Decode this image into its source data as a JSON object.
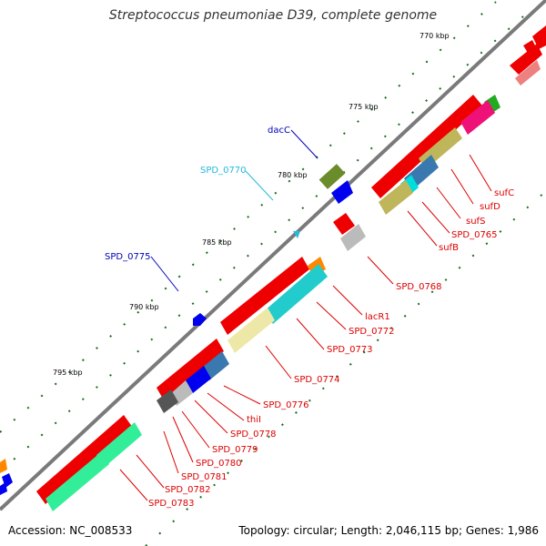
{
  "title": "Streptococcus pneumoniae D39, complete genome",
  "accession": "Accession: NC_008533",
  "topology": "Topology: circular; Length: 2,046,115 bp; Genes: 1,986",
  "colors": {
    "backbone": "#7a7a7a",
    "forward_gene": "#ee0000",
    "reverse_gene": "#0000ee",
    "label_red": "#dd0000",
    "label_blue": "#0000bb",
    "label_cyan": "#22bbdd",
    "tick_dots": "#1a6a1a"
  },
  "kbp_marks": [
    "770 kbp",
    "775 kbp",
    "780 kbp",
    "785 kbp",
    "790 kbp",
    "795 kbp"
  ],
  "outer_labels": [
    "dacC",
    "SPD_0770",
    "SPD_0775"
  ],
  "inner_labels": [
    "sufC",
    "sufD",
    "sufS",
    "SPD_0765",
    "sufB",
    "SPD_0768",
    "lacR1",
    "SPD_0772",
    "SPD_0773",
    "SPD_0774",
    "SPD_0776",
    "thiI",
    "SPD_0778",
    "SPD_0779",
    "SPD_0780",
    "SPD_0781",
    "SPD_0782",
    "SPD_0783"
  ]
}
